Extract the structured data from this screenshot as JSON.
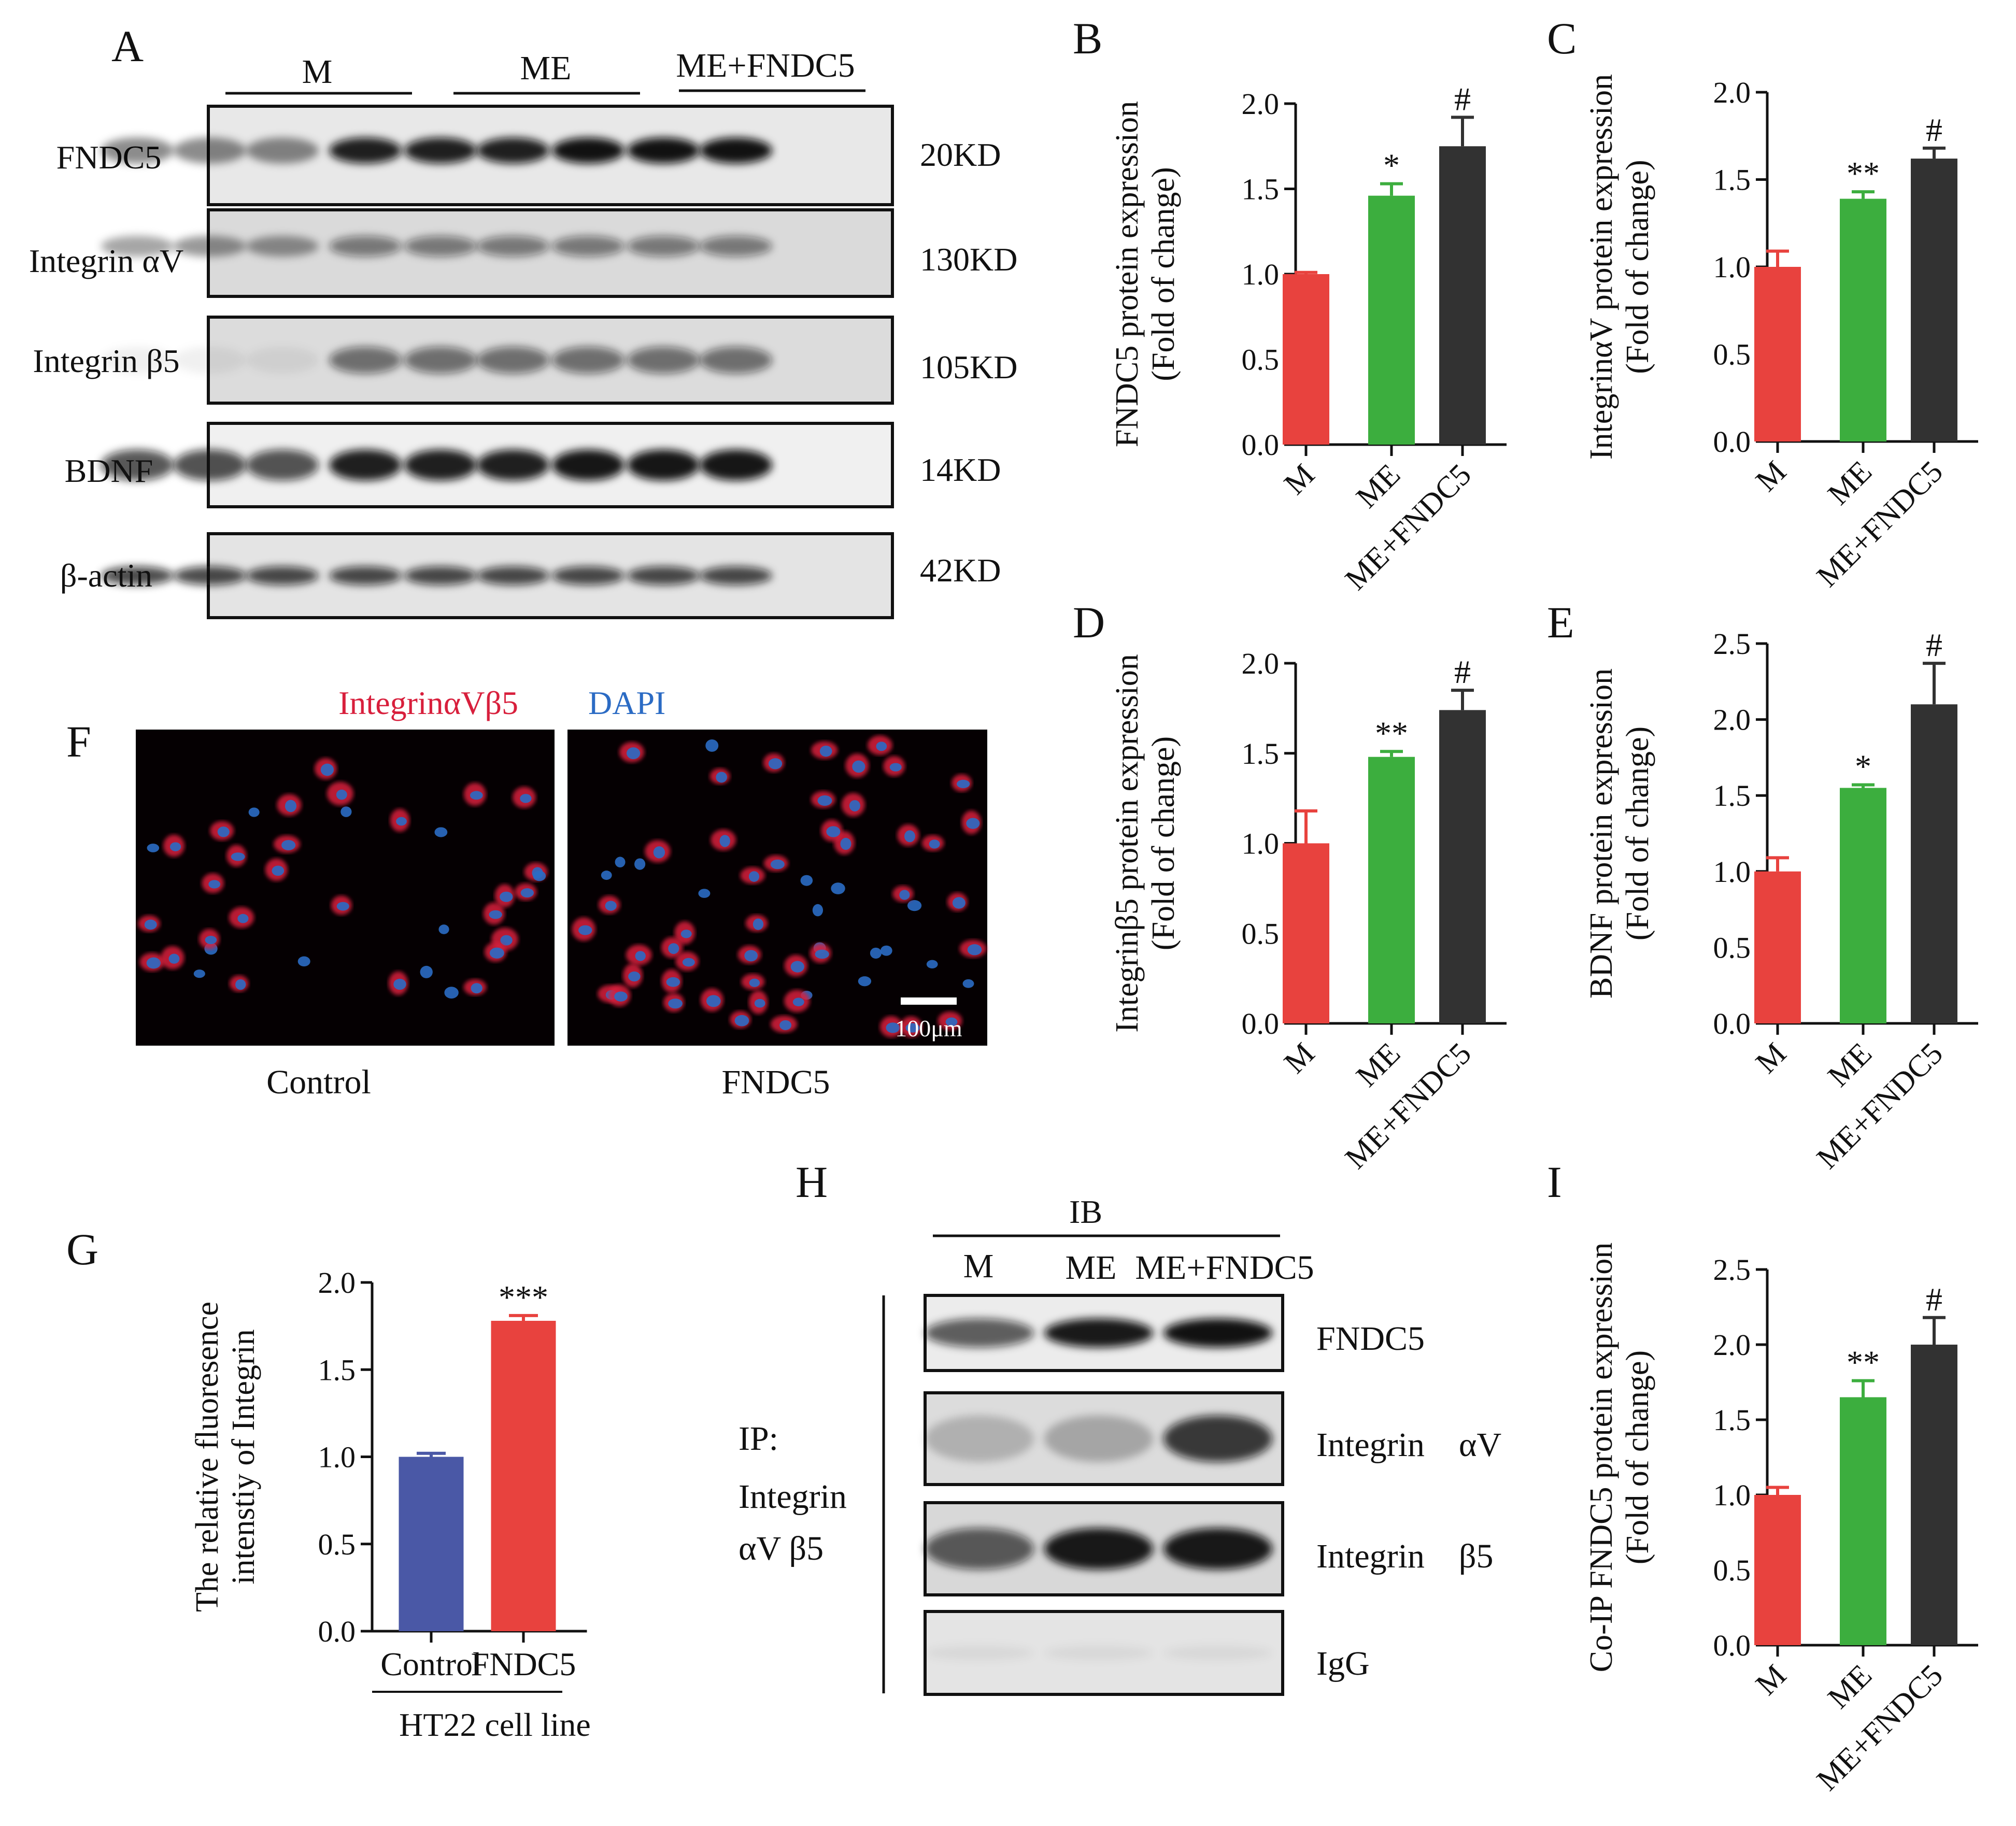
{
  "panel_letters": {
    "A": "A",
    "B": "B",
    "C": "C",
    "D": "D",
    "E": "E",
    "F": "F",
    "G": "G",
    "H": "H",
    "I": "I"
  },
  "colors": {
    "M": "#e8423e",
    "ME": "#3cae3e",
    "ME_FNDC5": "#323232",
    "Control": "#4a58a6",
    "FNDC5": "#e8423e",
    "red_stain": "#d81f3c",
    "blue_stain": "#2b6bc4"
  },
  "western_A": {
    "groups": [
      "M",
      "ME",
      "ME+FNDC5"
    ],
    "rows": [
      {
        "label": "FNDC5",
        "size": "20KD"
      },
      {
        "label": "Integrin αV",
        "size": "130KD"
      },
      {
        "label": "Integrin β5",
        "size": "105KD"
      },
      {
        "label": "BDNF",
        "size": "14KD"
      },
      {
        "label": "β-actin",
        "size": "42KD"
      }
    ]
  },
  "panel_F": {
    "title_red": "IntegrinαVβ5",
    "title_blue": "DAPI",
    "left_label": "Control",
    "right_label": "FNDC5",
    "scale_bar": "100μm"
  },
  "panel_H": {
    "ib_label": "IB",
    "groups": [
      "M",
      "ME",
      "ME+FNDC5"
    ],
    "ip_label": [
      "IP:",
      "Integrin",
      "αV β5"
    ],
    "rows": [
      "FNDC5",
      "Integrin    αV",
      "Integrin    β5",
      "IgG"
    ]
  },
  "chart_data": [
    {
      "panel": "B",
      "type": "bar",
      "categories": [
        "M",
        "ME",
        "ME+FNDC5"
      ],
      "values": [
        1.0,
        1.46,
        1.75
      ],
      "errors": [
        0.01,
        0.07,
        0.17
      ],
      "significance": [
        "",
        "*",
        "#"
      ],
      "ylabel": [
        "FNDC5 protein expression",
        "(Fold of change)"
      ],
      "yticks": [
        "0.0",
        "0.5",
        "1.0",
        "1.5",
        "2.0"
      ],
      "ylim": [
        0,
        2.0
      ]
    },
    {
      "panel": "C",
      "type": "bar",
      "categories": [
        "M",
        "ME",
        "ME+FNDC5"
      ],
      "values": [
        1.0,
        1.39,
        1.62
      ],
      "errors": [
        0.09,
        0.04,
        0.06
      ],
      "significance": [
        "",
        "**",
        "#"
      ],
      "ylabel": [
        "IntegrinαV protein expression",
        "(Fold of change)"
      ],
      "yticks": [
        "0.0",
        "0.5",
        "1.0",
        "1.5",
        "2.0"
      ],
      "ylim": [
        0,
        2.0
      ]
    },
    {
      "panel": "D",
      "type": "bar",
      "categories": [
        "M",
        "ME",
        "ME+FNDC5"
      ],
      "values": [
        1.0,
        1.48,
        1.74
      ],
      "errors": [
        0.18,
        0.03,
        0.11
      ],
      "significance": [
        "",
        "**",
        "#"
      ],
      "ylabel": [
        "Integrinβ5 protein expression",
        "(Fold of change)"
      ],
      "yticks": [
        "0.0",
        "0.5",
        "1.0",
        "1.5",
        "2.0"
      ],
      "ylim": [
        0,
        2.0
      ]
    },
    {
      "panel": "E",
      "type": "bar",
      "categories": [
        "M",
        "ME",
        "ME+FNDC5"
      ],
      "values": [
        1.0,
        1.55,
        2.1
      ],
      "errors": [
        0.09,
        0.02,
        0.27
      ],
      "significance": [
        "",
        "*",
        "#"
      ],
      "ylabel": [
        "BDNF protein expression",
        "(Fold of change)"
      ],
      "yticks": [
        "0.0",
        "0.5",
        "1.0",
        "1.5",
        "2.0",
        "2.5"
      ],
      "ylim": [
        0,
        2.5
      ]
    },
    {
      "panel": "G",
      "type": "bar",
      "categories": [
        "Control",
        "FNDC5"
      ],
      "values": [
        1.0,
        1.78
      ],
      "errors": [
        0.02,
        0.03
      ],
      "significance": [
        "",
        "***"
      ],
      "ylabel": [
        "The relative fluoresence",
        "intenstiy of Integrin"
      ],
      "xgroup": "HT22 cell line",
      "yticks": [
        "0.0",
        "0.5",
        "1.0",
        "1.5",
        "2.0"
      ],
      "ylim": [
        0,
        2.0
      ]
    },
    {
      "panel": "I",
      "type": "bar",
      "categories": [
        "M",
        "ME",
        "ME+FNDC5"
      ],
      "values": [
        1.0,
        1.65,
        2.0
      ],
      "errors": [
        0.05,
        0.11,
        0.18
      ],
      "significance": [
        "",
        "**",
        "#"
      ],
      "ylabel": [
        "Co-IP FNDC5 protein expression",
        "(Fold of change)"
      ],
      "yticks": [
        "0.0",
        "0.5",
        "1.0",
        "1.5",
        "2.0",
        "2.5"
      ],
      "ylim": [
        0,
        2.5
      ]
    }
  ]
}
